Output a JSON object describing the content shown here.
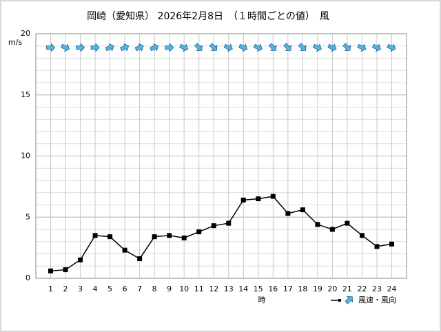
{
  "chart_data": {
    "type": "line",
    "title": "岡崎（愛知県）  2026年2月8日　（１時間ごとの値）　風",
    "y_unit": "m/s",
    "x_label": "時",
    "legend_label": "風速・風向",
    "x": [
      1,
      2,
      3,
      4,
      5,
      6,
      7,
      8,
      9,
      10,
      11,
      12,
      13,
      14,
      15,
      16,
      17,
      18,
      19,
      20,
      21,
      22,
      23,
      24
    ],
    "xlim": [
      0,
      25
    ],
    "series": [
      {
        "name": "風速",
        "color": "#000000",
        "values": [
          0.6,
          0.7,
          1.5,
          3.5,
          3.4,
          2.3,
          1.6,
          3.4,
          3.5,
          3.3,
          3.8,
          4.3,
          4.5,
          6.4,
          6.5,
          6.7,
          5.3,
          5.6,
          4.4,
          4.0,
          4.5,
          3.5,
          2.6,
          2.8
        ]
      },
      {
        "name": "風向",
        "color": "#4fb6ea",
        "values": [
          270,
          292.5,
          270,
          270,
          247.5,
          247.5,
          247.5,
          247.5,
          270,
          292.5,
          315,
          315,
          292.5,
          292.5,
          292.5,
          315,
          315,
          315,
          292.5,
          292.5,
          315,
          292.5,
          292.5,
          292.5
        ]
      }
    ],
    "ylim": [
      0,
      20
    ],
    "yticks": [
      0,
      5,
      10,
      15,
      20
    ],
    "minor_grid_step": 1,
    "grid": true
  }
}
